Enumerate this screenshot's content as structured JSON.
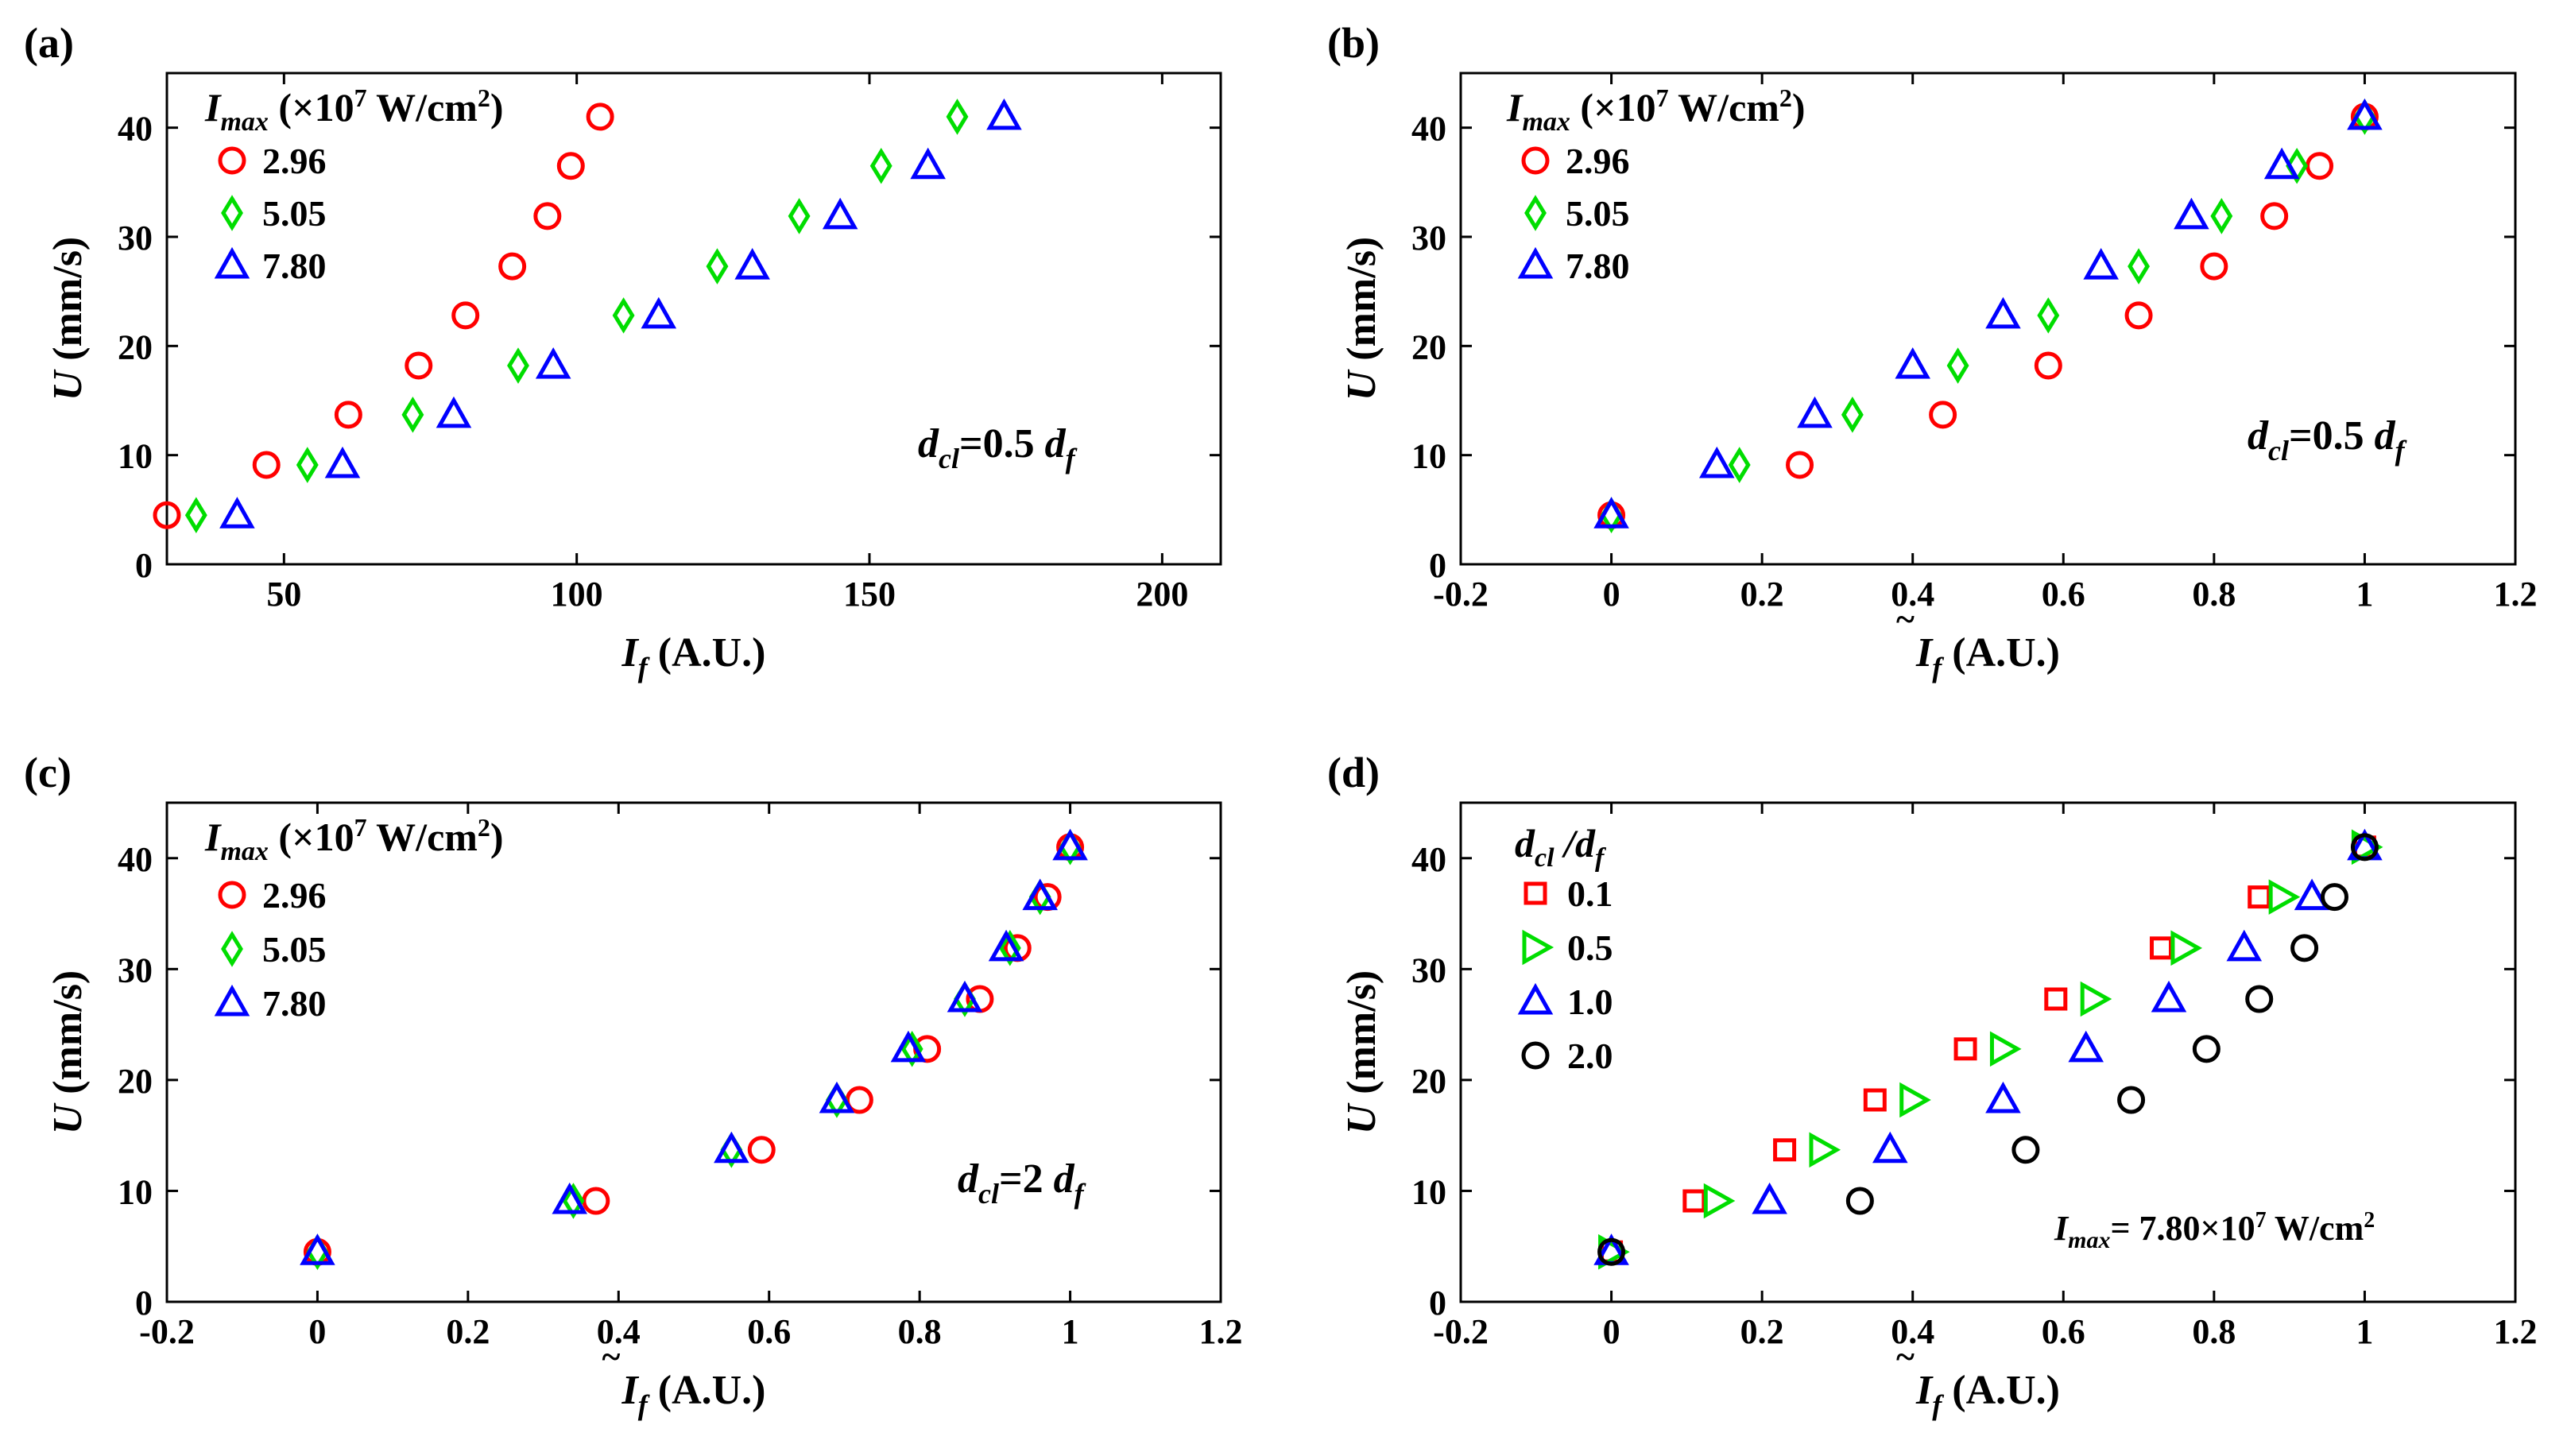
{
  "chart_data": [
    {
      "id": "a",
      "panel_label": "(a)",
      "type": "scatter",
      "xlabel": "I",
      "xlabel_sub": "f",
      "xlabel_unit": "(A.U.)",
      "xlabel_tilde": false,
      "ylabel": "U",
      "ylabel_unit": "(mm/s)",
      "xlim": [
        30,
        210
      ],
      "ylim": [
        0,
        45
      ],
      "xticks": [
        50,
        100,
        150,
        200
      ],
      "xtick_labels": [
        "50",
        "100",
        "150",
        "200"
      ],
      "yticks": [
        0,
        10,
        20,
        30,
        40
      ],
      "ytick_labels": [
        "0",
        "10",
        "20",
        "30",
        "40"
      ],
      "legend_title": "I",
      "legend_title_sub": "max",
      "legend_title_unit": "(×10",
      "legend_title_exp": "7",
      "legend_title_unit2": " W/cm",
      "legend_title_exp2": "2",
      "legend_title_close": ")",
      "annotation": "d",
      "annotation_sub": "cl",
      "annotation_rest": "=0.5 d",
      "annotation_rest_sub": "f",
      "series": [
        {
          "name": "2.96",
          "marker": "circle",
          "color": "#ff0000",
          "x": [
            30,
            47,
            61,
            73,
            81,
            89,
            95,
            99,
            104
          ],
          "y": [
            4.5,
            9.1,
            13.7,
            18.2,
            22.8,
            27.3,
            31.9,
            36.5,
            41.0
          ]
        },
        {
          "name": "5.05",
          "marker": "diamond",
          "color": "#00dd00",
          "x": [
            35,
            54,
            72,
            90,
            108,
            124,
            138,
            152,
            165
          ],
          "y": [
            4.5,
            9.1,
            13.7,
            18.2,
            22.8,
            27.3,
            31.9,
            36.5,
            41.0
          ]
        },
        {
          "name": "7.80",
          "marker": "triangle",
          "color": "#0000ff",
          "x": [
            42,
            60,
            79,
            96,
            114,
            130,
            145,
            160,
            173
          ],
          "y": [
            4.5,
            9.1,
            13.7,
            18.2,
            22.8,
            27.3,
            31.9,
            36.5,
            41.0
          ]
        }
      ]
    },
    {
      "id": "b",
      "panel_label": "(b)",
      "type": "scatter",
      "xlabel": "I",
      "xlabel_sub": "f",
      "xlabel_unit": "(A.U.)",
      "xlabel_tilde": true,
      "ylabel": "U",
      "ylabel_unit": "(mm/s)",
      "xlim": [
        -0.2,
        1.2
      ],
      "ylim": [
        0,
        45
      ],
      "xticks": [
        -0.2,
        0,
        0.2,
        0.4,
        0.6,
        0.8,
        1,
        1.2
      ],
      "xtick_labels": [
        "-0.2",
        "0",
        "0.2",
        "0.4",
        "0.6",
        "0.8",
        "1",
        "1.2"
      ],
      "yticks": [
        0,
        10,
        20,
        30,
        40
      ],
      "ytick_labels": [
        "0",
        "10",
        "20",
        "30",
        "40"
      ],
      "legend_title": "I",
      "legend_title_sub": "max",
      "legend_title_unit": "(×10",
      "legend_title_exp": "7",
      "legend_title_unit2": " W/cm",
      "legend_title_exp2": "2",
      "legend_title_close": ")",
      "annotation": "d",
      "annotation_sub": "cl",
      "annotation_rest": "=0.5 d",
      "annotation_rest_sub": "f",
      "series": [
        {
          "name": "2.96",
          "marker": "circle",
          "color": "#ff0000",
          "x": [
            0,
            0.25,
            0.44,
            0.58,
            0.7,
            0.8,
            0.88,
            0.94,
            1.0
          ],
          "y": [
            4.5,
            9.1,
            13.7,
            18.2,
            22.8,
            27.3,
            31.9,
            36.5,
            41.0
          ]
        },
        {
          "name": "5.05",
          "marker": "diamond",
          "color": "#00dd00",
          "x": [
            0,
            0.17,
            0.32,
            0.46,
            0.58,
            0.7,
            0.81,
            0.91,
            1.0
          ],
          "y": [
            4.5,
            9.1,
            13.7,
            18.2,
            22.8,
            27.3,
            31.9,
            36.5,
            41.0
          ]
        },
        {
          "name": "7.80",
          "marker": "triangle",
          "color": "#0000ff",
          "x": [
            0,
            0.14,
            0.27,
            0.4,
            0.52,
            0.65,
            0.77,
            0.89,
            1.0
          ],
          "y": [
            4.5,
            9.1,
            13.7,
            18.2,
            22.8,
            27.3,
            31.9,
            36.5,
            41.0
          ]
        }
      ]
    },
    {
      "id": "c",
      "panel_label": "(c)",
      "type": "scatter",
      "xlabel": "I",
      "xlabel_sub": "f",
      "xlabel_unit": "(A.U.)",
      "xlabel_tilde": true,
      "ylabel": "U",
      "ylabel_unit": "(mm/s)",
      "xlim": [
        -0.2,
        1.2
      ],
      "ylim": [
        0,
        45
      ],
      "xticks": [
        -0.2,
        0,
        0.2,
        0.4,
        0.6,
        0.8,
        1,
        1.2
      ],
      "xtick_labels": [
        "-0.2",
        "0",
        "0.2",
        "0.4",
        "0.6",
        "0.8",
        "1",
        "1.2"
      ],
      "yticks": [
        0,
        10,
        20,
        30,
        40
      ],
      "ytick_labels": [
        "0",
        "10",
        "20",
        "30",
        "40"
      ],
      "legend_title": "I",
      "legend_title_sub": "max",
      "legend_title_unit": "(×10",
      "legend_title_exp": "7",
      "legend_title_unit2": " W/cm",
      "legend_title_exp2": "2",
      "legend_title_close": ")",
      "annotation": "d",
      "annotation_sub": "cl",
      "annotation_rest": "=2 d",
      "annotation_rest_sub": "f",
      "series": [
        {
          "name": "2.96",
          "marker": "circle",
          "color": "#ff0000",
          "x": [
            0,
            0.37,
            0.59,
            0.72,
            0.81,
            0.88,
            0.93,
            0.97,
            1.0
          ],
          "y": [
            4.5,
            9.1,
            13.7,
            18.2,
            22.8,
            27.3,
            31.9,
            36.5,
            41.0
          ]
        },
        {
          "name": "5.05",
          "marker": "diamond",
          "color": "#00dd00",
          "x": [
            0,
            0.34,
            0.55,
            0.69,
            0.79,
            0.86,
            0.92,
            0.96,
            1.0
          ],
          "y": [
            4.5,
            9.1,
            13.7,
            18.2,
            22.8,
            27.3,
            31.9,
            36.5,
            41.0
          ]
        },
        {
          "name": "7.80",
          "marker": "triangle",
          "color": "#0000ff",
          "x": [
            0,
            0.335,
            0.55,
            0.69,
            0.785,
            0.86,
            0.915,
            0.96,
            1.0
          ],
          "y": [
            4.5,
            9.1,
            13.7,
            18.2,
            22.8,
            27.3,
            31.9,
            36.5,
            41.0
          ]
        }
      ]
    },
    {
      "id": "d",
      "panel_label": "(d)",
      "type": "scatter",
      "xlabel": "I",
      "xlabel_sub": "f",
      "xlabel_unit": "(A.U.)",
      "xlabel_tilde": true,
      "ylabel": "U",
      "ylabel_unit": "(mm/s)",
      "xlim": [
        -0.2,
        1.2
      ],
      "ylim": [
        0,
        45
      ],
      "xticks": [
        -0.2,
        0,
        0.2,
        0.4,
        0.6,
        0.8,
        1,
        1.2
      ],
      "xtick_labels": [
        "-0.2",
        "0",
        "0.2",
        "0.4",
        "0.6",
        "0.8",
        "1",
        "1.2"
      ],
      "yticks": [
        0,
        10,
        20,
        30,
        40
      ],
      "ytick_labels": [
        "0",
        "10",
        "20",
        "30",
        "40"
      ],
      "legend_title_ratio": {
        "a": "d",
        "a_sub": "cl",
        "slash": " /",
        "b": "d",
        "b_sub": "f"
      },
      "annotation_imax": {
        "main": "I",
        "sub": "max",
        "rest": "= 7.80×10",
        "exp": "7",
        "unit": " W/cm",
        "exp2": "2"
      },
      "series": [
        {
          "name": "0.1",
          "marker": "square",
          "color": "#ff0000",
          "x": [
            0,
            0.11,
            0.23,
            0.35,
            0.47,
            0.59,
            0.73,
            0.86,
            1.0
          ],
          "y": [
            4.5,
            9.1,
            13.7,
            18.2,
            22.8,
            27.3,
            31.9,
            36.5,
            41.0
          ]
        },
        {
          "name": "0.5",
          "marker": "triangle-right",
          "color": "#00dd00",
          "x": [
            0,
            0.14,
            0.28,
            0.4,
            0.52,
            0.64,
            0.76,
            0.89,
            1.0
          ],
          "y": [
            4.5,
            9.1,
            13.7,
            18.2,
            22.8,
            27.3,
            31.9,
            36.5,
            41.0
          ]
        },
        {
          "name": "1.0",
          "marker": "triangle",
          "color": "#0000ff",
          "x": [
            0,
            0.21,
            0.37,
            0.52,
            0.63,
            0.74,
            0.84,
            0.93,
            1.0
          ],
          "y": [
            4.5,
            9.1,
            13.7,
            18.2,
            22.8,
            27.3,
            31.9,
            36.5,
            41.0
          ]
        },
        {
          "name": "2.0",
          "marker": "circle",
          "color": "#000000",
          "x": [
            0,
            0.33,
            0.55,
            0.69,
            0.79,
            0.86,
            0.92,
            0.96,
            1.0
          ],
          "y": [
            4.5,
            9.1,
            13.7,
            18.2,
            22.8,
            27.3,
            31.9,
            36.5,
            41.0
          ]
        }
      ]
    }
  ]
}
